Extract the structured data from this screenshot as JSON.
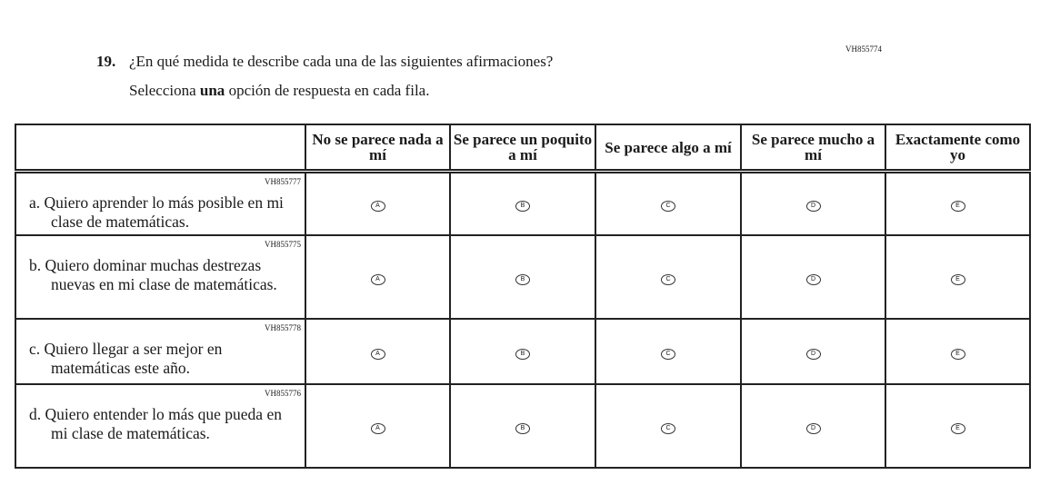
{
  "question": {
    "id": "VH855774",
    "number": "19.",
    "text": "¿En qué medida te describe cada una de las siguientes afirmaciones?",
    "instruction_pre": "Selecciona ",
    "instruction_bold": "una",
    "instruction_post": " opción de respuesta en cada fila."
  },
  "columns": [
    "No se parece nada a mí",
    "Se parece un poquito a mí",
    "Se parece algo a mí",
    "Se parece mucho a mí",
    "Exactamente como yo"
  ],
  "options": [
    "A",
    "B",
    "C",
    "D",
    "E"
  ],
  "rows": [
    {
      "id": "VH855777",
      "text": "a. Quiero aprender lo más posible en mi clase de matemáticas."
    },
    {
      "id": "VH855775",
      "text": "b. Quiero dominar muchas destrezas nuevas en mi clase de matemáticas."
    },
    {
      "id": "VH855778",
      "text": "c. Quiero llegar a ser mejor en matemáticas este año."
    },
    {
      "id": "VH855776",
      "text": "d. Quiero entender lo más que pueda en mi clase de matemáticas."
    }
  ]
}
